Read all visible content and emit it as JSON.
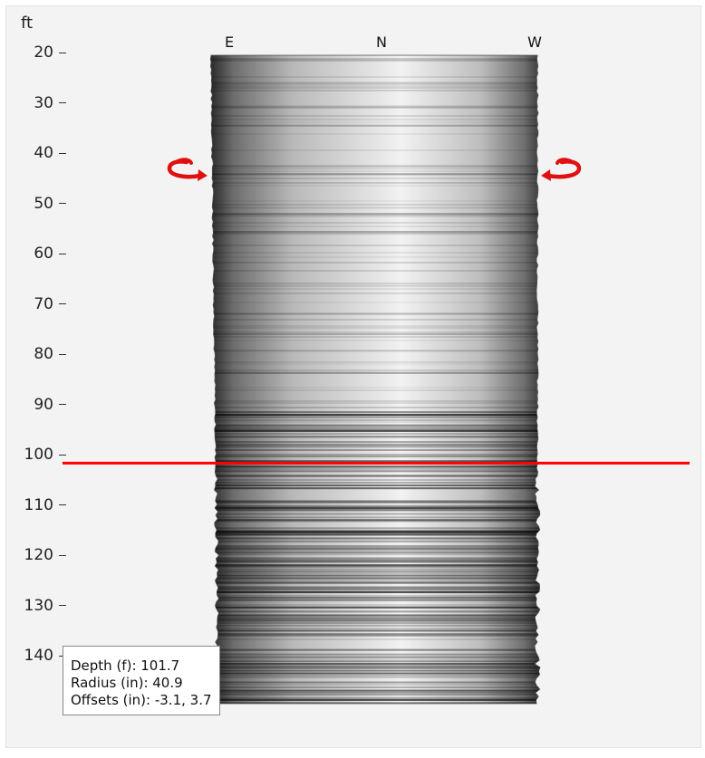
{
  "depth_axis": {
    "unit": "ft",
    "ticks": [
      "20",
      "30",
      "40",
      "50",
      "60",
      "70",
      "80",
      "90",
      "100",
      "110",
      "120",
      "130",
      "140"
    ]
  },
  "compass": {
    "left": "E",
    "center": "N",
    "right": "W"
  },
  "controls": {
    "rotate_left_icon": "rotate-counterclockwise-arrow",
    "rotate_right_icon": "rotate-clockwise-arrow"
  },
  "depth_cursor": {
    "depth_ft": 101.7,
    "color": "#ff0000"
  },
  "readout": {
    "depth": "Depth (f): 101.7",
    "radius": "Radius (in): 40.9",
    "offsets": "Offsets (in): -3.1, 3.7"
  },
  "colors": {
    "accent": "#e01010",
    "panel_bg": "#f3f3f3"
  }
}
